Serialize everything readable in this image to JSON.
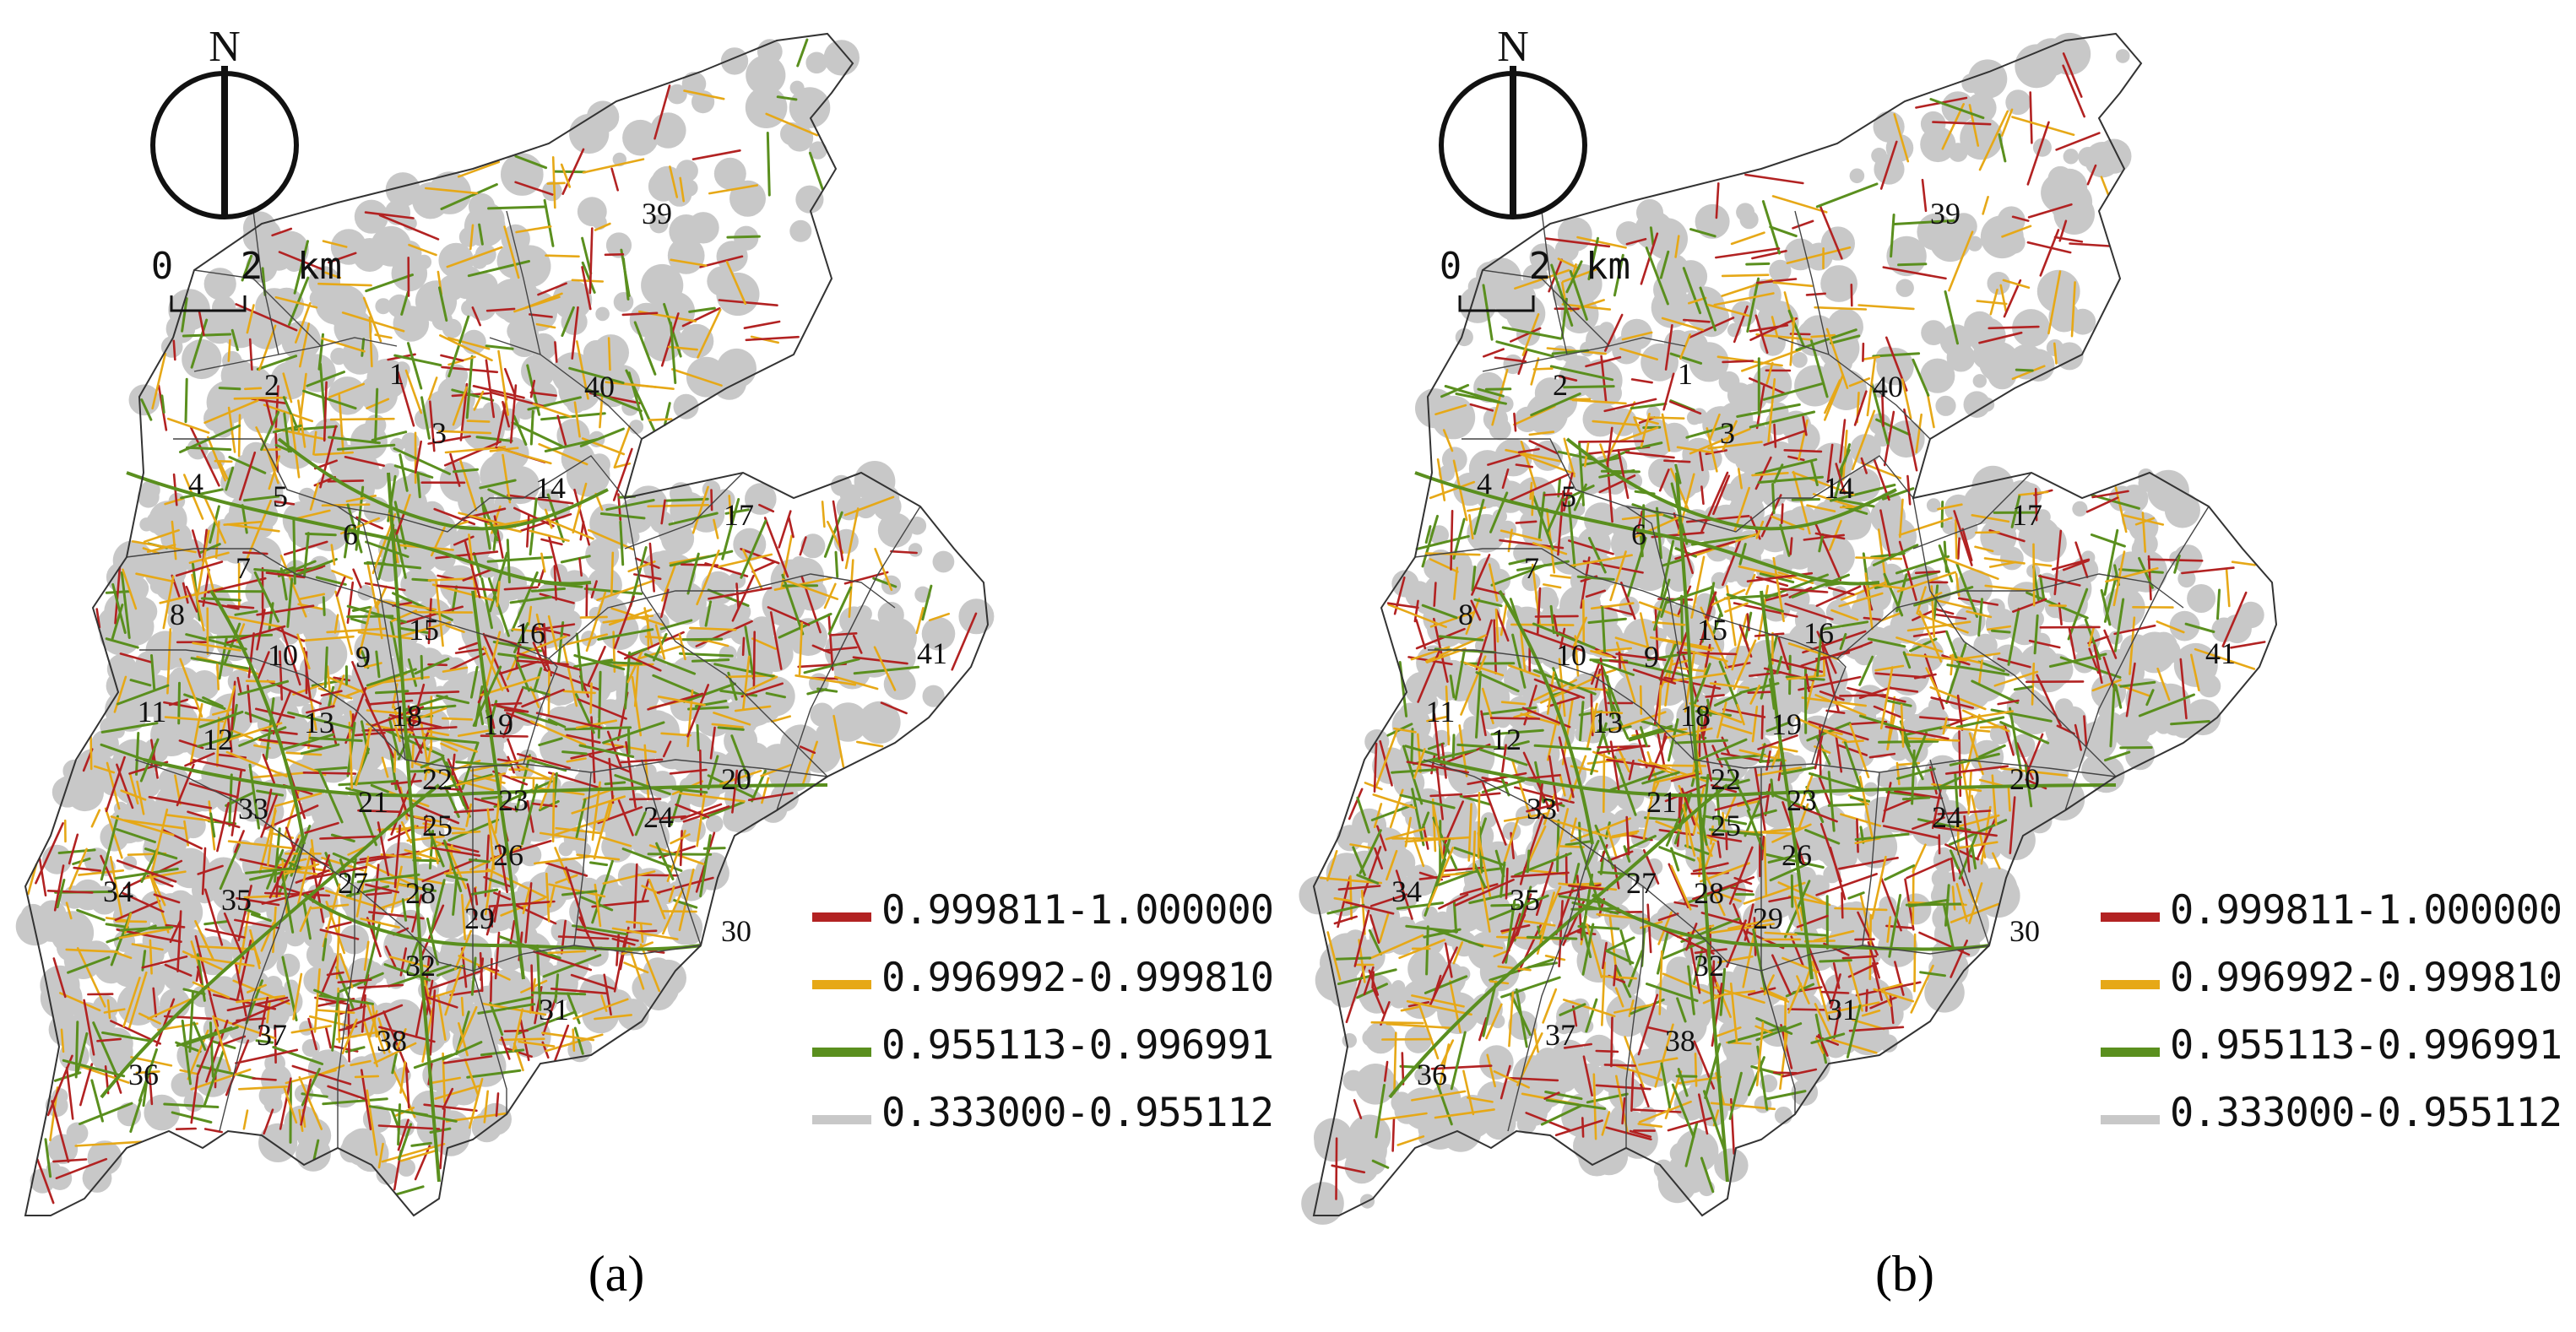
{
  "figure": {
    "panels": [
      {
        "label": "(a)",
        "north_label": "N",
        "scale": {
          "zero": "0",
          "max": "2",
          "unit": "km"
        },
        "district_ids": [
          "1",
          "2",
          "3",
          "4",
          "5",
          "6",
          "7",
          "8",
          "9",
          "10",
          "11",
          "12",
          "13",
          "14",
          "15",
          "16",
          "17",
          "18",
          "19",
          "20",
          "21",
          "22",
          "23",
          "24",
          "25",
          "26",
          "27",
          "28",
          "29",
          "30",
          "31",
          "32",
          "33",
          "34",
          "35",
          "36",
          "37",
          "38",
          "39",
          "40",
          "41"
        ]
      },
      {
        "label": "(b)",
        "north_label": "N",
        "scale": {
          "zero": "0",
          "max": "2",
          "unit": "km"
        },
        "district_ids": [
          "1",
          "2",
          "3",
          "4",
          "5",
          "6",
          "7",
          "8",
          "9",
          "10",
          "11",
          "12",
          "13",
          "14",
          "15",
          "16",
          "17",
          "18",
          "19",
          "20",
          "21",
          "22",
          "23",
          "24",
          "25",
          "26",
          "27",
          "28",
          "29",
          "30",
          "31",
          "32",
          "33",
          "34",
          "35",
          "36",
          "37",
          "38",
          "39",
          "40",
          "41"
        ]
      }
    ],
    "legend": [
      {
        "range": "0.999811-1.000000",
        "color": "#b22222"
      },
      {
        "range": "0.996992-0.999810",
        "color": "#e6a817"
      },
      {
        "range": "0.955113-0.996991",
        "color": "#5a8f1e"
      },
      {
        "range": "0.333000-0.955112",
        "color": "#c8c8c8"
      }
    ]
  }
}
